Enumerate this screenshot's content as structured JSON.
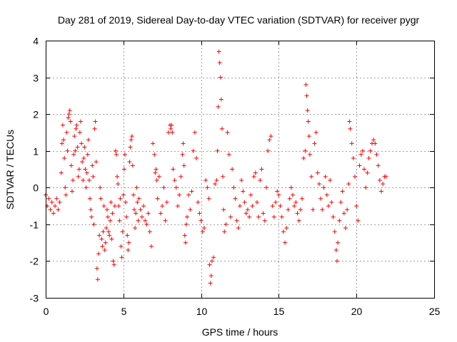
{
  "chart_data": {
    "type": "scatter",
    "title": "Day 281 of 2019, Sidereal Day-to-day VTEC variation (SDTVAR) for receiver pygr",
    "xlabel": "GPS time / hours",
    "ylabel": "SDTVAR / TECUs",
    "xlim": [
      0,
      25
    ],
    "ylim": [
      -3,
      4
    ],
    "xticks": [
      "0",
      "5",
      "10",
      "15",
      "20",
      "25"
    ],
    "yticks": [
      "-3",
      "-2",
      "-1",
      "0",
      "1",
      "2",
      "3",
      "4"
    ],
    "grid": true,
    "marker": "+",
    "colors": {
      "series": "#ff0000",
      "grid": "#a0a0a0",
      "frame": "#000000"
    },
    "series": [
      {
        "name": "SDTVAR",
        "points": [
          [
            0.0,
            -0.2
          ],
          [
            0.1,
            -0.5
          ],
          [
            0.2,
            -0.3
          ],
          [
            0.3,
            -0.6
          ],
          [
            0.4,
            -0.4
          ],
          [
            0.5,
            -0.7
          ],
          [
            0.6,
            -0.5
          ],
          [
            0.7,
            -0.3
          ],
          [
            0.8,
            -0.6
          ],
          [
            0.9,
            -0.4
          ],
          [
            1.0,
            0.4
          ],
          [
            1.05,
            1.2
          ],
          [
            1.1,
            1.7
          ],
          [
            1.15,
            1.3
          ],
          [
            1.2,
            0.8
          ],
          [
            1.25,
            0.0
          ],
          [
            1.3,
            -0.2
          ],
          [
            1.35,
            1.5
          ],
          [
            1.4,
            1.0
          ],
          [
            1.45,
            1.9
          ],
          [
            1.5,
            2.0
          ],
          [
            1.55,
            2.1
          ],
          [
            1.6,
            1.8
          ],
          [
            1.65,
            0.6
          ],
          [
            1.7,
            -0.1
          ],
          [
            1.75,
            0.2
          ],
          [
            1.8,
            0.9
          ],
          [
            1.85,
            1.4
          ],
          [
            1.9,
            1.0
          ],
          [
            1.95,
            1.6
          ],
          [
            2.0,
            1.7
          ],
          [
            2.05,
            1.1
          ],
          [
            2.1,
            0.3
          ],
          [
            2.15,
            0.5
          ],
          [
            2.2,
            1.5
          ],
          [
            2.25,
            1.8
          ],
          [
            2.3,
            1.2
          ],
          [
            2.35,
            0.7
          ],
          [
            2.4,
            0.2
          ],
          [
            2.45,
            0.8
          ],
          [
            2.5,
            1.1
          ],
          [
            2.55,
            0.5
          ],
          [
            2.6,
            0.0
          ],
          [
            2.65,
            0.4
          ],
          [
            2.7,
            0.9
          ],
          [
            2.75,
            1.3
          ],
          [
            2.8,
            0.2
          ],
          [
            2.85,
            -0.3
          ],
          [
            2.9,
            -0.6
          ],
          [
            2.95,
            -0.8
          ],
          [
            3.0,
            0.6
          ],
          [
            3.05,
            0.3
          ],
          [
            3.1,
            -1.0
          ],
          [
            3.15,
            1.6
          ],
          [
            3.2,
            1.8
          ],
          [
            3.25,
            0.7
          ],
          [
            3.3,
            -2.2
          ],
          [
            3.35,
            -2.5
          ],
          [
            3.4,
            -1.8
          ],
          [
            3.45,
            -1.3
          ],
          [
            3.5,
            0.0
          ],
          [
            3.55,
            -0.3
          ],
          [
            3.6,
            -1.4
          ],
          [
            3.65,
            -1.6
          ],
          [
            3.7,
            -1.2
          ],
          [
            3.75,
            -0.5
          ],
          [
            3.8,
            -1.7
          ],
          [
            3.85,
            -1.5
          ],
          [
            3.9,
            -1.1
          ],
          [
            3.95,
            -0.6
          ],
          [
            4.0,
            -0.8
          ],
          [
            4.05,
            -1.2
          ],
          [
            4.1,
            -1.3
          ],
          [
            4.15,
            -0.9
          ],
          [
            4.2,
            -0.4
          ],
          [
            4.25,
            -1.4
          ],
          [
            4.3,
            -0.7
          ],
          [
            4.35,
            -2.0
          ],
          [
            4.4,
            -2.1
          ],
          [
            4.45,
            -0.5
          ],
          [
            4.5,
            1.0
          ],
          [
            4.55,
            0.9
          ],
          [
            4.6,
            0.3
          ],
          [
            4.65,
            0.1
          ],
          [
            4.7,
            -0.5
          ],
          [
            4.75,
            -0.9
          ],
          [
            4.8,
            -0.3
          ],
          [
            4.85,
            -1.6
          ],
          [
            4.9,
            -1.9
          ],
          [
            4.95,
            -1.2
          ],
          [
            5.0,
            -0.2
          ],
          [
            5.05,
            0.5
          ],
          [
            5.1,
            0.9
          ],
          [
            5.15,
            -0.4
          ],
          [
            5.2,
            -0.8
          ],
          [
            5.25,
            -1.3
          ],
          [
            5.3,
            -1.7
          ],
          [
            5.35,
            -1.5
          ],
          [
            5.4,
            0.7
          ],
          [
            5.45,
            1.1
          ],
          [
            5.5,
            1.3
          ],
          [
            5.55,
            1.4
          ],
          [
            5.6,
            0.6
          ],
          [
            5.65,
            -0.2
          ],
          [
            5.7,
            -0.6
          ],
          [
            5.75,
            -1.1
          ],
          [
            5.8,
            -0.7
          ],
          [
            5.85,
            0.0
          ],
          [
            5.9,
            -0.4
          ],
          [
            5.95,
            -0.9
          ],
          [
            6.0,
            -0.3
          ],
          [
            6.1,
            -0.6
          ],
          [
            6.2,
            -0.8
          ],
          [
            6.3,
            -0.5
          ],
          [
            6.4,
            -0.9
          ],
          [
            6.5,
            -1.0
          ],
          [
            6.6,
            -0.7
          ],
          [
            6.7,
            -1.2
          ],
          [
            6.8,
            -1.6
          ],
          [
            6.9,
            1.2
          ],
          [
            7.0,
            0.9
          ],
          [
            7.05,
            0.4
          ],
          [
            7.1,
            0.5
          ],
          [
            7.15,
            0.2
          ],
          [
            7.2,
            -0.3
          ],
          [
            7.3,
            0.3
          ],
          [
            7.4,
            -0.7
          ],
          [
            7.5,
            -0.5
          ],
          [
            7.6,
            0.0
          ],
          [
            7.7,
            -0.9
          ],
          [
            7.8,
            -0.4
          ],
          [
            7.9,
            1.5
          ],
          [
            8.0,
            1.7
          ],
          [
            8.05,
            1.6
          ],
          [
            8.1,
            1.7
          ],
          [
            8.15,
            1.5
          ],
          [
            8.2,
            0.5
          ],
          [
            8.3,
            0.2
          ],
          [
            8.4,
            0.0
          ],
          [
            8.5,
            -0.5
          ],
          [
            8.6,
            -0.2
          ],
          [
            8.7,
            0.3
          ],
          [
            8.8,
            0.9
          ],
          [
            8.85,
            1.2
          ],
          [
            8.9,
            0.6
          ],
          [
            8.95,
            -1.3
          ],
          [
            9.0,
            -1.5
          ],
          [
            9.05,
            -1.0
          ],
          [
            9.1,
            -0.8
          ],
          [
            9.2,
            -0.2
          ],
          [
            9.3,
            -0.6
          ],
          [
            9.4,
            -0.1
          ],
          [
            9.5,
            1.0
          ],
          [
            9.6,
            1.5
          ],
          [
            9.7,
            0.8
          ],
          [
            9.8,
            -0.4
          ],
          [
            9.9,
            -0.7
          ],
          [
            10.0,
            -0.9
          ],
          [
            10.1,
            -1.2
          ],
          [
            10.2,
            -1.1
          ],
          [
            10.3,
            0.2
          ],
          [
            10.4,
            0.0
          ],
          [
            10.5,
            -0.3
          ],
          [
            10.55,
            -2.1
          ],
          [
            10.6,
            -2.6
          ],
          [
            10.65,
            -2.4
          ],
          [
            10.7,
            -2.0
          ],
          [
            10.8,
            -1.9
          ],
          [
            10.9,
            0.1
          ],
          [
            11.0,
            0.2
          ],
          [
            11.05,
            1.0
          ],
          [
            11.1,
            2.2
          ],
          [
            11.15,
            3.7
          ],
          [
            11.2,
            3.4
          ],
          [
            11.25,
            3.0
          ],
          [
            11.3,
            2.4
          ],
          [
            11.35,
            1.6
          ],
          [
            11.4,
            0.3
          ],
          [
            11.45,
            -0.6
          ],
          [
            11.5,
            -1.2
          ],
          [
            11.6,
            -1.0
          ],
          [
            11.7,
            1.5
          ],
          [
            11.8,
            0.9
          ],
          [
            11.9,
            -0.8
          ],
          [
            12.0,
            0.5
          ],
          [
            12.1,
            0.0
          ],
          [
            12.2,
            -0.3
          ],
          [
            12.3,
            -0.9
          ],
          [
            12.4,
            -1.1
          ],
          [
            12.5,
            -0.5
          ],
          [
            12.6,
            0.2
          ],
          [
            12.7,
            -0.1
          ],
          [
            12.8,
            -0.4
          ],
          [
            12.9,
            -0.7
          ],
          [
            13.0,
            -0.6
          ],
          [
            13.1,
            -0.8
          ],
          [
            13.2,
            -0.2
          ],
          [
            13.3,
            -0.5
          ],
          [
            13.4,
            0.3
          ],
          [
            13.5,
            0.4
          ],
          [
            13.6,
            -0.4
          ],
          [
            13.7,
            -0.8
          ],
          [
            13.8,
            0.2
          ],
          [
            13.9,
            0.5
          ],
          [
            14.0,
            -0.7
          ],
          [
            14.1,
            -0.9
          ],
          [
            14.2,
            0.0
          ],
          [
            14.3,
            1.0
          ],
          [
            14.4,
            1.3
          ],
          [
            14.5,
            1.4
          ],
          [
            14.6,
            -0.5
          ],
          [
            14.7,
            -0.8
          ],
          [
            14.8,
            -0.4
          ],
          [
            14.9,
            -0.1
          ],
          [
            15.0,
            -0.2
          ],
          [
            15.1,
            -0.5
          ],
          [
            15.2,
            -0.8
          ],
          [
            15.3,
            -1.2
          ],
          [
            15.4,
            -1.5
          ],
          [
            15.5,
            -1.1
          ],
          [
            15.6,
            -0.6
          ],
          [
            15.7,
            -0.3
          ],
          [
            15.8,
            0.0
          ],
          [
            15.9,
            -0.2
          ],
          [
            16.0,
            -0.5
          ],
          [
            16.1,
            -0.4
          ],
          [
            16.2,
            -0.7
          ],
          [
            16.3,
            -0.9
          ],
          [
            16.4,
            -0.6
          ],
          [
            16.5,
            -0.3
          ],
          [
            16.6,
            0.8
          ],
          [
            16.7,
            1.0
          ],
          [
            16.75,
            2.8
          ],
          [
            16.8,
            2.5
          ],
          [
            16.85,
            2.1
          ],
          [
            16.9,
            1.8
          ],
          [
            16.95,
            1.4
          ],
          [
            17.0,
            0.9
          ],
          [
            17.1,
            0.3
          ],
          [
            17.2,
            -0.6
          ],
          [
            17.3,
            1.2
          ],
          [
            17.4,
            1.5
          ],
          [
            17.5,
            0.4
          ],
          [
            17.6,
            0.1
          ],
          [
            17.7,
            -0.3
          ],
          [
            17.8,
            -0.6
          ],
          [
            17.9,
            0.0
          ],
          [
            18.0,
            0.3
          ],
          [
            18.1,
            -0.2
          ],
          [
            18.2,
            -0.5
          ],
          [
            18.3,
            0.2
          ],
          [
            18.4,
            -0.4
          ],
          [
            18.5,
            -0.8
          ],
          [
            18.6,
            -1.2
          ],
          [
            18.7,
            -1.7
          ],
          [
            18.75,
            -2.0
          ],
          [
            18.8,
            -1.5
          ],
          [
            18.9,
            -0.9
          ],
          [
            19.0,
            -0.4
          ],
          [
            19.1,
            -0.1
          ],
          [
            19.2,
            -0.7
          ],
          [
            19.3,
            -1.1
          ],
          [
            19.4,
            -0.6
          ],
          [
            19.5,
            0.1
          ],
          [
            19.55,
            1.8
          ],
          [
            19.6,
            1.6
          ],
          [
            19.7,
            1.2
          ],
          [
            19.8,
            0.8
          ],
          [
            19.9,
            0.3
          ],
          [
            20.0,
            -0.5
          ],
          [
            20.1,
            -0.9
          ],
          [
            20.2,
            0.6
          ],
          [
            20.3,
            0.9
          ],
          [
            20.4,
            1.0
          ],
          [
            20.5,
            0.5
          ],
          [
            20.6,
            0.0
          ],
          [
            20.7,
            0.4
          ],
          [
            20.8,
            0.8
          ],
          [
            20.9,
            1.0
          ],
          [
            21.0,
            1.2
          ],
          [
            21.1,
            1.3
          ],
          [
            21.2,
            1.2
          ],
          [
            21.3,
            0.9
          ],
          [
            21.4,
            0.6
          ],
          [
            21.5,
            0.2
          ],
          [
            21.6,
            -0.1
          ],
          [
            21.7,
            0.1
          ],
          [
            21.8,
            0.3
          ],
          [
            21.9,
            0.3
          ]
        ]
      }
    ]
  }
}
